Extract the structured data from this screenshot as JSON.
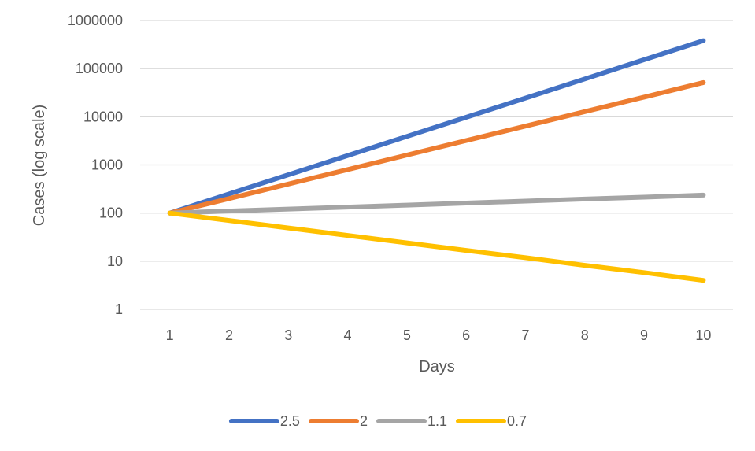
{
  "chart_data": {
    "type": "line",
    "title": "",
    "xlabel": "Days",
    "ylabel": "Cases (log scale)",
    "x": [
      1,
      2,
      3,
      4,
      5,
      6,
      7,
      8,
      9,
      10
    ],
    "x_tick_labels": [
      "1",
      "2",
      "3",
      "4",
      "5",
      "6",
      "7",
      "8",
      "9",
      "10"
    ],
    "y_scale": "log",
    "ylim": [
      1,
      1000000
    ],
    "y_tick_labels": [
      "1",
      "10",
      "100",
      "1000",
      "10000",
      "100000",
      "1000000"
    ],
    "grid": true,
    "legend_position": "bottom",
    "series": [
      {
        "name": "2.5",
        "color": "#4472C4",
        "values": [
          100,
          250,
          625,
          1563,
          3906,
          9766,
          24414,
          61035,
          152588,
          381470
        ]
      },
      {
        "name": "2",
        "color": "#ED7D31",
        "values": [
          100,
          200,
          400,
          800,
          1600,
          3200,
          6400,
          12800,
          25600,
          51200
        ]
      },
      {
        "name": "1.1",
        "color": "#A5A5A5",
        "values": [
          100,
          110,
          121,
          133,
          146,
          161,
          177,
          195,
          214,
          236
        ]
      },
      {
        "name": "0.7",
        "color": "#FFC000",
        "values": [
          100,
          70,
          49,
          34.3,
          24,
          16.8,
          11.8,
          8.2,
          5.8,
          4.0
        ]
      }
    ]
  }
}
